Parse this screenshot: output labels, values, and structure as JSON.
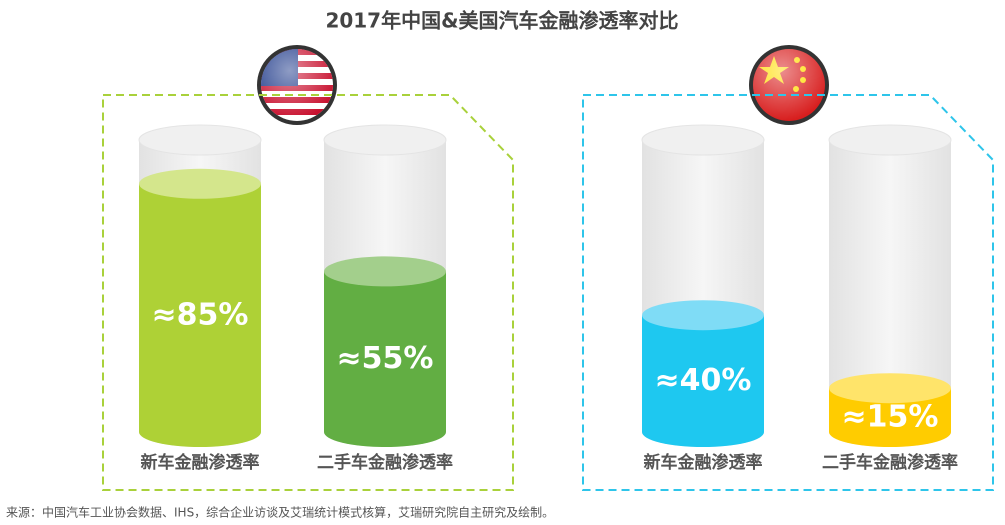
{
  "title": "2017年中国&美国汽车金融渗透率对比",
  "source": "来源：中国汽车工业协会数据、IHS，综合企业访谈及艾瑞统计模式核算，艾瑞研究院自主研究及绘制。",
  "chart_data": [
    {
      "type": "bar",
      "categories": [
        "新车金融渗透率",
        "二手车金融渗透率"
      ],
      "values": [
        85,
        55
      ],
      "value_labels": [
        "≈85%",
        "≈55%"
      ],
      "colors": [
        "#aed136",
        "#62ae43"
      ],
      "top_colors": [
        "#d4e68c",
        "#a3cf8c"
      ],
      "border_color": "#a9d13b",
      "ylim": [
        0,
        100
      ]
    },
    {
      "type": "bar",
      "categories": [
        "新车金融渗透率",
        "二手车金融渗透率"
      ],
      "values": [
        40,
        15
      ],
      "value_labels": [
        "≈40%",
        "≈15%"
      ],
      "colors": [
        "#1ec8f0",
        "#ffcc00"
      ],
      "top_colors": [
        "#7fdcf6",
        "#ffe46a"
      ],
      "border_color": "#2ec5ea",
      "ylim": [
        0,
        100
      ]
    }
  ]
}
